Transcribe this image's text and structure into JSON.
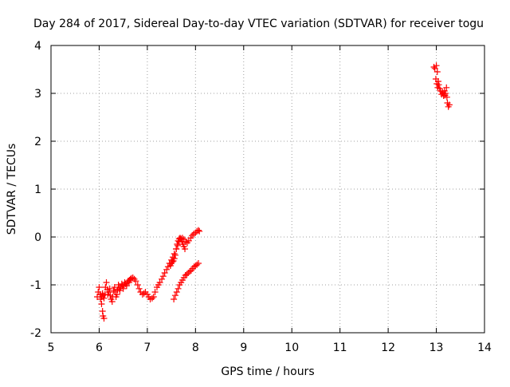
{
  "chart_data": {
    "type": "scatter",
    "title": "Day 284 of 2017, Sidereal Day-to-day VTEC variation (SDTVAR) for receiver togu",
    "xlabel": "GPS time / hours",
    "ylabel": "SDTVAR / TECUs",
    "xlim": [
      5,
      14
    ],
    "ylim": [
      -2,
      4
    ],
    "xticks": [
      5,
      6,
      7,
      8,
      9,
      10,
      11,
      12,
      13,
      14
    ],
    "yticks": [
      -2,
      -1,
      0,
      1,
      2,
      3,
      4
    ],
    "grid": true,
    "marker": "+",
    "series": [
      {
        "name": "SDTVAR",
        "color": "#ff0000",
        "x": [
          5.96,
          5.98,
          6.0,
          6.02,
          6.03,
          6.05,
          6.07,
          6.08,
          6.1,
          6.12,
          6.13,
          6.15,
          6.17,
          6.18,
          6.2,
          6.22,
          6.23,
          6.25,
          6.27,
          6.28,
          6.3,
          6.32,
          6.33,
          6.35,
          6.37,
          6.38,
          6.4,
          6.42,
          6.43,
          6.45,
          6.47,
          6.48,
          6.5,
          6.52,
          6.53,
          6.55,
          6.57,
          6.58,
          6.6,
          6.62,
          6.63,
          6.65,
          6.67,
          6.7,
          6.73,
          6.76,
          6.8,
          6.83,
          6.86,
          6.9,
          6.93,
          6.96,
          7.0,
          7.03,
          7.06,
          7.1,
          7.13,
          7.16,
          7.2,
          7.23,
          7.26,
          7.3,
          7.33,
          7.36,
          7.4,
          7.43,
          7.46,
          7.5,
          7.53,
          7.56,
          7.6,
          7.63,
          7.66,
          7.7,
          7.73,
          7.76,
          7.8,
          7.83,
          7.86,
          7.9,
          7.93,
          7.96,
          8.0,
          8.03,
          8.06,
          8.08,
          7.48,
          7.5,
          7.52,
          7.54,
          7.56,
          7.58,
          7.6,
          7.62,
          7.64,
          7.66,
          7.68,
          7.7,
          7.72,
          7.74,
          7.76,
          7.78,
          7.55,
          7.58,
          7.61,
          7.64,
          7.67,
          7.7,
          7.73,
          7.76,
          7.79,
          7.82,
          7.85,
          7.88,
          7.91,
          7.94,
          7.97,
          8.0,
          8.03,
          8.06,
          6.05,
          6.07,
          6.08,
          6.1,
          12.95,
          12.97,
          12.99,
          13.01,
          13.03,
          13.05,
          13.07,
          13.09,
          13.11,
          13.13,
          13.15,
          13.17,
          13.19,
          13.21,
          13.23,
          13.25,
          13.27,
          13.0,
          13.02,
          13.04,
          13.14,
          13.18,
          13.22
        ],
        "y": [
          -1.25,
          -1.15,
          -1.05,
          -1.2,
          -1.3,
          -1.25,
          -1.18,
          -1.22,
          -1.28,
          -1.2,
          -1.05,
          -0.95,
          -1.1,
          -1.2,
          -1.15,
          -1.08,
          -1.22,
          -1.3,
          -1.35,
          -1.25,
          -1.12,
          -1.05,
          -1.15,
          -1.25,
          -1.2,
          -1.1,
          -1.0,
          -1.08,
          -1.12,
          -1.05,
          -0.98,
          -1.02,
          -1.08,
          -1.0,
          -0.95,
          -0.98,
          -1.02,
          -0.96,
          -0.92,
          -0.95,
          -0.9,
          -0.88,
          -0.86,
          -0.85,
          -0.88,
          -0.92,
          -1.0,
          -1.08,
          -1.15,
          -1.2,
          -1.18,
          -1.15,
          -1.2,
          -1.25,
          -1.3,
          -1.28,
          -1.25,
          -1.15,
          -1.05,
          -1.0,
          -0.95,
          -0.88,
          -0.82,
          -0.75,
          -0.68,
          -0.62,
          -0.55,
          -0.48,
          -0.42,
          -0.35,
          -0.25,
          -0.18,
          -0.1,
          -0.04,
          -0.02,
          -0.05,
          -0.1,
          -0.12,
          -0.08,
          -0.02,
          0.03,
          0.06,
          0.09,
          0.12,
          0.14,
          0.12,
          -0.6,
          -0.55,
          -0.52,
          -0.5,
          -0.45,
          -0.38,
          -0.25,
          -0.15,
          -0.08,
          -0.04,
          -0.02,
          -0.05,
          -0.1,
          -0.15,
          -0.2,
          -0.25,
          -1.3,
          -1.22,
          -1.15,
          -1.08,
          -1.0,
          -0.95,
          -0.9,
          -0.85,
          -0.8,
          -0.78,
          -0.75,
          -0.72,
          -0.7,
          -0.66,
          -0.62,
          -0.6,
          -0.58,
          -0.55,
          -1.4,
          -1.55,
          -1.65,
          -1.7,
          3.55,
          3.52,
          3.3,
          3.2,
          3.12,
          3.18,
          3.1,
          3.05,
          2.98,
          3.02,
          2.95,
          3.05,
          3.0,
          3.12,
          2.8,
          2.72,
          2.76,
          3.58,
          3.45,
          3.25,
          3.0,
          2.96,
          2.92
        ]
      }
    ]
  }
}
